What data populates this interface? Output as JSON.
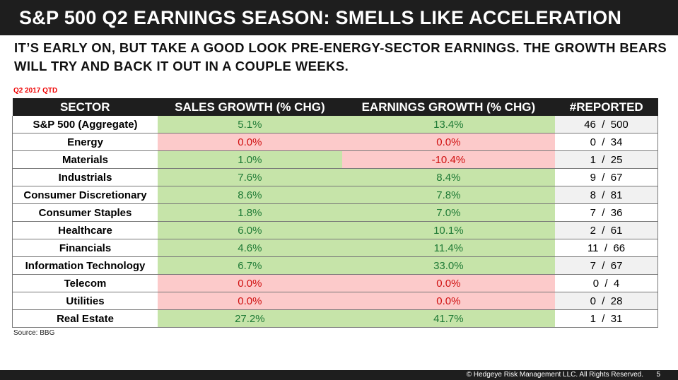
{
  "title": "S&P 500 Q2 EARNINGS SEASON: SMELLS LIKE ACCELERATION",
  "subtitle": "IT’S EARLY ON, BUT TAKE A GOOD LOOK PRE-ENERGY-SECTOR EARNINGS. THE GROWTH BEARS WILL TRY AND BACK IT OUT IN A COUPLE WEEKS.",
  "period_label": "Q2 2017 QTD",
  "colors": {
    "positive_bg": "#c6e4a9",
    "positive_text": "#1e7a35",
    "negative_bg": "#fccaca",
    "negative_text": "#d01010",
    "header_bg": "#1e1e1e"
  },
  "table": {
    "headers": [
      "SECTOR",
      "SALES GROWTH (% CHG)",
      "EARNINGS GROWTH (% CHG)",
      "#REPORTED"
    ],
    "rows": [
      {
        "sector": "S&P 500 (Aggregate)",
        "sales": "5.1%",
        "sales_status": "pos",
        "earnings": "13.4%",
        "earnings_status": "pos",
        "reported": "46  /  500"
      },
      {
        "sector": "Energy",
        "sales": "0.0%",
        "sales_status": "neg",
        "earnings": "0.0%",
        "earnings_status": "neg",
        "reported": "0  /  34"
      },
      {
        "sector": "Materials",
        "sales": "1.0%",
        "sales_status": "pos",
        "earnings": "-10.4%",
        "earnings_status": "neg",
        "reported": "1  /  25"
      },
      {
        "sector": "Industrials",
        "sales": "7.6%",
        "sales_status": "pos",
        "earnings": "8.4%",
        "earnings_status": "pos",
        "reported": "9  /  67"
      },
      {
        "sector": "Consumer Discretionary",
        "sales": "8.6%",
        "sales_status": "pos",
        "earnings": "7.8%",
        "earnings_status": "pos",
        "reported": "8  /  81"
      },
      {
        "sector": "Consumer Staples",
        "sales": "1.8%",
        "sales_status": "pos",
        "earnings": "7.0%",
        "earnings_status": "pos",
        "reported": "7  /  36"
      },
      {
        "sector": "Healthcare",
        "sales": "6.0%",
        "sales_status": "pos",
        "earnings": "10.1%",
        "earnings_status": "pos",
        "reported": "2  /  61"
      },
      {
        "sector": "Financials",
        "sales": "4.6%",
        "sales_status": "pos",
        "earnings": "11.4%",
        "earnings_status": "pos",
        "reported": "11  /  66"
      },
      {
        "sector": "Information Technology",
        "sales": "6.7%",
        "sales_status": "pos",
        "earnings": "33.0%",
        "earnings_status": "pos",
        "reported": "7  /  67"
      },
      {
        "sector": "Telecom",
        "sales": "0.0%",
        "sales_status": "neg",
        "earnings": "0.0%",
        "earnings_status": "neg",
        "reported": "0  /  4"
      },
      {
        "sector": "Utilities",
        "sales": "0.0%",
        "sales_status": "neg",
        "earnings": "0.0%",
        "earnings_status": "neg",
        "reported": "0  /  28"
      },
      {
        "sector": "Real Estate",
        "sales": "27.2%",
        "sales_status": "pos",
        "earnings": "41.7%",
        "earnings_status": "pos",
        "reported": "1  /  31"
      }
    ]
  },
  "source": "Source: BBG",
  "footer": {
    "copyright": "© Hedgeye Risk Management LLC. All Rights Reserved.",
    "page": "5"
  }
}
